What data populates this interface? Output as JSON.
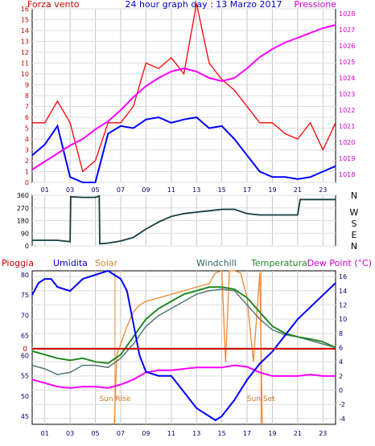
{
  "title": "24 hour graph day : 13 Marzo 2017",
  "colors": {
    "wind": "#ff0000",
    "avg_wind": "#0000ff",
    "pressure": "#ff00ff",
    "direction": "#143c3c",
    "humidity": "#0000ff",
    "solar": "#ee8833",
    "windchill": "#557777",
    "temperature": "#228822",
    "dewpoint": "#ff00ff",
    "rain": "#cc0000",
    "axis_left_top": "#cc0000",
    "axis_right_top": "#cc00cc",
    "title_color": "#0000cc",
    "tick_labels": "#000066"
  },
  "chart_data": [
    {
      "type": "line",
      "labels": {
        "left": "Forza vento",
        "right": "Pressione"
      },
      "hour_ticks": [
        "01",
        "03",
        "05",
        "07",
        "09",
        "11",
        "13",
        "15",
        "17",
        "19",
        "21",
        "23"
      ],
      "left_ticks": [
        "0",
        "1",
        "2",
        "3",
        "4",
        "5",
        "6",
        "7",
        "8",
        "9",
        "10",
        "11",
        "12",
        "13",
        "14",
        "15",
        "16"
      ],
      "right_ticks": [
        "1018",
        "1019",
        "1020",
        "1021",
        "1022",
        "1023",
        "1024",
        "1025",
        "1026",
        "1027",
        "1028"
      ],
      "ylim_left": [
        0,
        16
      ],
      "ylim_right": [
        1017.5,
        1028.3
      ],
      "xlim": [
        0,
        24
      ],
      "grid": true,
      "series": [
        {
          "key": "pressure",
          "axis": "right",
          "x": [
            0,
            1,
            2,
            3,
            4,
            5,
            6,
            7,
            8,
            9,
            10,
            11,
            12,
            13,
            14,
            15,
            16,
            17,
            18,
            19,
            20,
            21,
            22,
            23,
            24
          ],
          "values": [
            1018.3,
            1018.8,
            1019.3,
            1019.8,
            1020.2,
            1020.8,
            1021.3,
            1022.0,
            1022.8,
            1023.5,
            1024.0,
            1024.4,
            1024.6,
            1024.4,
            1024.0,
            1023.8,
            1024.0,
            1024.6,
            1025.3,
            1025.8,
            1026.2,
            1026.5,
            1026.8,
            1027.1,
            1027.3
          ]
        },
        {
          "key": "avg_wind",
          "axis": "left",
          "x": [
            0,
            1,
            2,
            3,
            4,
            5,
            6,
            7,
            8,
            9,
            10,
            11,
            12,
            13,
            14,
            15,
            16,
            17,
            18,
            19,
            20,
            21,
            22,
            23,
            24
          ],
          "values": [
            2.5,
            3.5,
            5.2,
            0.5,
            0.0,
            0.0,
            4.5,
            5.2,
            5.0,
            5.8,
            6.0,
            5.5,
            5.8,
            6.0,
            5.0,
            5.2,
            4.0,
            2.5,
            1.0,
            0.5,
            0.5,
            0.3,
            0.5,
            1.0,
            1.5
          ]
        },
        {
          "key": "wind",
          "axis": "left",
          "x": [
            0,
            1,
            2,
            3,
            4,
            5,
            6,
            7,
            8,
            9,
            10,
            11,
            12,
            13,
            14,
            15,
            16,
            17,
            18,
            19,
            20,
            21,
            22,
            23,
            24
          ],
          "values": [
            5.5,
            5.5,
            7.5,
            5.5,
            1.0,
            2.0,
            5.5,
            5.5,
            7.0,
            11.0,
            10.5,
            11.5,
            10.0,
            16.5,
            11.0,
            9.5,
            8.5,
            7.0,
            5.5,
            5.5,
            4.5,
            4.0,
            5.5,
            3.0,
            5.5
          ]
        }
      ]
    },
    {
      "type": "line",
      "labels": {
        "right": [
          "N",
          "W",
          "S",
          "E",
          "N"
        ]
      },
      "left_ticks": [
        "0",
        "90",
        "180",
        "270",
        "360"
      ],
      "hour_ticks": [
        "01",
        "03",
        "05",
        "07",
        "09",
        "11",
        "13",
        "15",
        "17",
        "19",
        "21",
        "23"
      ],
      "ylim": [
        0,
        360
      ],
      "xlim": [
        0,
        24
      ],
      "series": [
        {
          "key": "direction",
          "x": [
            0,
            1,
            2,
            3,
            3.05,
            4,
            5,
            5.3,
            5.35,
            6,
            7,
            8,
            9,
            10,
            11,
            12,
            13,
            14,
            15,
            16,
            17,
            18,
            19,
            20,
            21,
            21.2,
            22,
            23,
            24
          ],
          "values": [
            40,
            40,
            40,
            30,
            350,
            345,
            345,
            355,
            15,
            20,
            35,
            60,
            120,
            170,
            210,
            230,
            240,
            250,
            260,
            260,
            230,
            220,
            220,
            220,
            220,
            330,
            330,
            330,
            330
          ]
        }
      ]
    },
    {
      "type": "line",
      "labels": {
        "rain": "Pioggia",
        "humidity": "Umidita",
        "solar": "Solar",
        "windchill": "Windchill",
        "temperature": "Temperatura",
        "dewpoint": "Dew Point (°C)",
        "sunrise": "Sun Rise",
        "sunset": "Sun Set",
        "rain_zero": "0"
      },
      "left_ticks": [
        "45",
        "50",
        "55",
        "60",
        "65",
        "70",
        "75",
        "80"
      ],
      "right_ticks": [
        "-4",
        "-2",
        "0",
        "2",
        "4",
        "6",
        "8",
        "10",
        "12",
        "14",
        "16"
      ],
      "hour_ticks": [
        "01",
        "03",
        "05",
        "07",
        "09",
        "11",
        "13",
        "15",
        "17",
        "19",
        "21",
        "23"
      ],
      "ylim_left": [
        43,
        81
      ],
      "ylim_right": [
        -4.8,
        16.8
      ],
      "xlim": [
        0,
        24
      ],
      "grid": true,
      "rain_value": 0,
      "sunrise_hour": 6.55,
      "sunset_hour": 18.1,
      "series": [
        {
          "key": "humidity",
          "axis": "left",
          "x": [
            0,
            0.5,
            1,
            1.5,
            2,
            3,
            4,
            5,
            6,
            6.5,
            7,
            7.5,
            8,
            8.5,
            9,
            10,
            11,
            12,
            13,
            14,
            14.5,
            15,
            16,
            17,
            18,
            19,
            20,
            21,
            22,
            23,
            24
          ],
          "values": [
            75,
            78,
            79,
            79,
            77,
            76,
            79,
            80,
            81,
            80,
            79,
            76,
            68,
            60,
            56,
            55,
            55,
            51,
            47,
            45,
            44,
            45,
            49,
            54,
            58,
            61,
            65,
            69,
            72,
            75,
            78
          ]
        },
        {
          "key": "windchill",
          "axis": "right",
          "x": [
            0,
            1,
            2,
            3,
            4,
            5,
            6,
            7,
            8,
            9,
            10,
            11,
            12,
            13,
            14,
            15,
            16,
            17,
            18,
            19,
            20,
            21,
            22,
            23,
            24
          ],
          "values": [
            3.5,
            3.0,
            2.2,
            2.5,
            3.5,
            3.5,
            3.2,
            4.5,
            6.5,
            9.0,
            10.5,
            11.5,
            12.5,
            13.5,
            14.0,
            14.2,
            14.0,
            12.0,
            10.0,
            8.5,
            7.8,
            7.5,
            7.0,
            6.5,
            6.0
          ]
        },
        {
          "key": "temperature",
          "axis": "right",
          "x": [
            0,
            1,
            2,
            3,
            4,
            5,
            6,
            7,
            8,
            9,
            10,
            11,
            12,
            13,
            14,
            15,
            16,
            17,
            18,
            19,
            20,
            21,
            22,
            23,
            24
          ],
          "values": [
            5.5,
            5.0,
            4.5,
            4.2,
            4.5,
            4.0,
            3.8,
            5.0,
            7.5,
            10.0,
            11.5,
            12.5,
            13.5,
            14.0,
            14.5,
            14.5,
            14.2,
            13.0,
            11.0,
            9.0,
            8.0,
            7.5,
            7.2,
            6.8,
            6.0
          ]
        },
        {
          "key": "dewpoint",
          "axis": "right",
          "x": [
            0,
            1,
            2,
            3,
            4,
            5,
            6,
            7,
            8,
            9,
            10,
            11,
            12,
            13,
            14,
            15,
            16,
            17,
            18,
            19,
            20,
            21,
            22,
            23,
            24
          ],
          "values": [
            1.5,
            1.0,
            0.5,
            0.3,
            0.5,
            0.5,
            0.3,
            0.8,
            1.5,
            2.5,
            2.8,
            2.8,
            3.0,
            3.2,
            3.2,
            3.2,
            3.5,
            3.3,
            2.5,
            2.0,
            2.0,
            2.0,
            2.2,
            2.0,
            2.0
          ]
        },
        {
          "key": "solar",
          "axis": "right",
          "x": [
            6.5,
            6.7,
            7,
            7.5,
            8,
            8.5,
            9,
            10,
            11,
            12,
            13,
            14,
            14.5,
            15,
            15.3,
            15.6,
            16,
            16.5,
            17,
            17.5,
            18,
            18.2
          ],
          "values": [
            -4.8,
            5.0,
            6.5,
            9.0,
            11.0,
            12.0,
            12.5,
            13.0,
            13.5,
            14.0,
            14.5,
            15.0,
            16.5,
            16.8,
            4.0,
            16.8,
            16.8,
            16.5,
            13.0,
            4.0,
            16.5,
            -4.8
          ]
        }
      ]
    }
  ]
}
